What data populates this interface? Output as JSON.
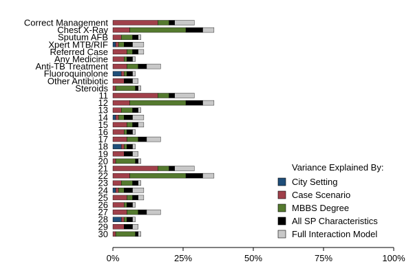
{
  "chart_data": {
    "type": "bar",
    "orientation": "horizontal",
    "stacked": true,
    "categories": [
      "Correct Management",
      "Chest X-Ray",
      "Sputum AFB",
      "Xpert MTB/RIF",
      "Referred Case",
      "Any Medicine",
      "Anti-TB Treatment",
      "Fluoroquinolone",
      "Other Antibiotic",
      "Steroids",
      "11",
      "12",
      "13",
      "14",
      "15",
      "16",
      "17",
      "18",
      "19",
      "20",
      "21",
      "22",
      "23",
      "24",
      "25",
      "26",
      "27",
      "28",
      "29",
      "30"
    ],
    "series": [
      {
        "name": "City Setting",
        "color": "#1f4e79",
        "values": [
          0,
          0,
          0,
          1,
          0,
          0,
          0,
          3,
          0,
          0,
          0,
          0,
          0,
          1,
          0,
          0,
          0,
          3,
          0,
          0,
          0,
          0,
          0,
          1,
          0,
          0,
          0,
          3,
          0,
          0
        ]
      },
      {
        "name": "Case Scenario",
        "color": "#a0404a",
        "values": [
          16,
          6,
          3,
          1,
          5,
          4,
          5,
          1,
          4,
          1,
          16,
          6,
          3,
          1,
          5,
          4,
          5,
          1,
          4,
          1,
          16,
          6,
          3,
          1,
          5,
          4,
          5,
          1,
          4,
          1
        ]
      },
      {
        "name": "MBBS Degree",
        "color": "#557a2f",
        "values": [
          4,
          20,
          4,
          2,
          2,
          1,
          4,
          1,
          0,
          7,
          4,
          20,
          4,
          2,
          2,
          1,
          4,
          1,
          0,
          7,
          4,
          20,
          4,
          2,
          2,
          1,
          4,
          1,
          0,
          7
        ]
      },
      {
        "name": "All SP Characteristics",
        "color": "#000000",
        "values": [
          2,
          6,
          2,
          3,
          2,
          2,
          3,
          2,
          3,
          1,
          2,
          6,
          2,
          3,
          2,
          2,
          3,
          2,
          3,
          1,
          2,
          6,
          2,
          3,
          2,
          2,
          3,
          2,
          3,
          1
        ]
      },
      {
        "name": "Full Interaction Model",
        "color": "#c8c8c8",
        "values": [
          7,
          4,
          1,
          4,
          2,
          1,
          5,
          1,
          2,
          1,
          7,
          4,
          1,
          4,
          2,
          1,
          5,
          1,
          2,
          1,
          7,
          4,
          1,
          4,
          2,
          1,
          5,
          1,
          2,
          1
        ]
      }
    ],
    "xlim": [
      0,
      100
    ],
    "xticks": [
      "0%",
      "25%",
      "50%",
      "75%",
      "100%"
    ],
    "xlabel": "",
    "ylabel": "",
    "legend": {
      "title": "Variance Explained By:",
      "position": "bottom-right"
    }
  }
}
